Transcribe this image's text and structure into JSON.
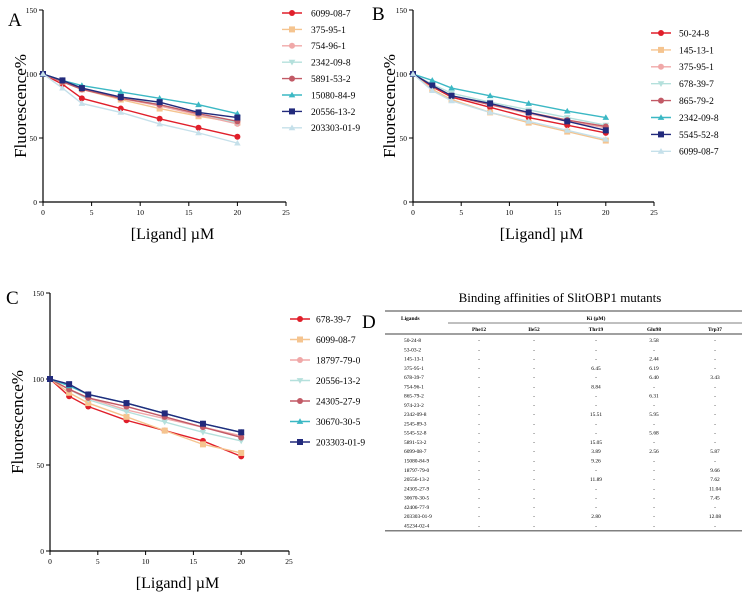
{
  "series_colors": [
    "#e01f2a",
    "#f5c48f",
    "#f0a8a8",
    "#b4e0dc",
    "#c25a66",
    "#3bb8c4",
    "#222a7c",
    "#c5e0ea"
  ],
  "chart_data": [
    {
      "panel": "A",
      "type": "line",
      "xlabel": "[Ligand] µM",
      "ylabel": "Fluorescence%",
      "xlim": [
        0,
        25
      ],
      "ylim": [
        0,
        150
      ],
      "xticks": [
        0,
        5,
        10,
        15,
        20,
        25
      ],
      "yticks": [
        0,
        50,
        100,
        150
      ],
      "x": [
        0,
        2,
        4,
        8,
        12,
        16,
        20
      ],
      "series": [
        {
          "name": "6099-08-7",
          "color": "#e01f2a",
          "marker": "circle",
          "values": [
            100,
            92,
            81,
            73,
            65,
            58,
            51
          ]
        },
        {
          "name": "375-95-1",
          "color": "#f5c48f",
          "marker": "square",
          "values": [
            100,
            94,
            88,
            80,
            73,
            67,
            62
          ]
        },
        {
          "name": "754-96-1",
          "color": "#f0a8a8",
          "marker": "circle",
          "values": [
            100,
            94,
            88,
            81,
            75,
            68,
            61
          ]
        },
        {
          "name": "2342-09-8",
          "color": "#b4e0dc",
          "marker": "tri-down",
          "values": [
            100,
            94,
            88,
            82,
            76,
            69,
            62
          ]
        },
        {
          "name": "5891-53-2",
          "color": "#c25a66",
          "marker": "circle",
          "values": [
            100,
            94,
            88,
            81,
            76,
            69,
            63
          ]
        },
        {
          "name": "15080-84-9",
          "color": "#3bb8c4",
          "marker": "tri-up",
          "values": [
            100,
            95,
            91,
            86,
            81,
            76,
            69
          ]
        },
        {
          "name": "20556-13-2",
          "color": "#222a7c",
          "marker": "square",
          "values": [
            100,
            95,
            89,
            82,
            78,
            70,
            66
          ]
        },
        {
          "name": "203303-01-9",
          "color": "#c5e0ea",
          "marker": "tri-up",
          "values": [
            100,
            89,
            77,
            70,
            61,
            54,
            46
          ]
        }
      ]
    },
    {
      "panel": "B",
      "type": "line",
      "xlabel": "[Ligand] µM",
      "ylabel": "Fluorescence%",
      "xlim": [
        0,
        25
      ],
      "ylim": [
        0,
        150
      ],
      "xticks": [
        0,
        5,
        10,
        15,
        20,
        25
      ],
      "yticks": [
        0,
        50,
        100,
        150
      ],
      "x": [
        0,
        2,
        4,
        8,
        12,
        16,
        20
      ],
      "series": [
        {
          "name": "50-24-8",
          "color": "#e01f2a",
          "marker": "circle",
          "values": [
            100,
            90,
            82,
            74,
            66,
            60,
            54
          ]
        },
        {
          "name": "145-13-1",
          "color": "#f5c48f",
          "marker": "square",
          "values": [
            100,
            88,
            80,
            70,
            62,
            55,
            48
          ]
        },
        {
          "name": "375-95-1",
          "color": "#f0a8a8",
          "marker": "circle",
          "values": [
            100,
            91,
            83,
            76,
            69,
            63,
            58
          ]
        },
        {
          "name": "678-39-7",
          "color": "#b4e0dc",
          "marker": "tri-down",
          "values": [
            100,
            92,
            85,
            78,
            72,
            66,
            60
          ]
        },
        {
          "name": "865-79-2",
          "color": "#c25a66",
          "marker": "circle",
          "values": [
            100,
            91,
            83,
            76,
            70,
            64,
            59
          ]
        },
        {
          "name": "2342-09-8",
          "color": "#3bb8c4",
          "marker": "tri-up",
          "values": [
            100,
            95,
            89,
            83,
            77,
            71,
            66
          ]
        },
        {
          "name": "5545-52-8",
          "color": "#222a7c",
          "marker": "square",
          "values": [
            100,
            91,
            83,
            77,
            70,
            63,
            56
          ]
        },
        {
          "name": "6099-08-7",
          "color": "#c5e0ea",
          "marker": "tri-up",
          "values": [
            100,
            87,
            79,
            70,
            63,
            56,
            49
          ]
        }
      ]
    },
    {
      "panel": "C",
      "type": "line",
      "xlabel": "[Ligand] µM",
      "ylabel": "Fluorescence%",
      "xlim": [
        0,
        25
      ],
      "ylim": [
        0,
        150
      ],
      "xticks": [
        0,
        5,
        10,
        15,
        20,
        25
      ],
      "yticks": [
        0,
        50,
        100,
        150
      ],
      "x": [
        0,
        2,
        4,
        8,
        12,
        16,
        20
      ],
      "series": [
        {
          "name": "678-39-7",
          "color": "#e01f2a",
          "marker": "circle",
          "values": [
            100,
            90,
            84,
            76,
            70,
            64,
            55
          ]
        },
        {
          "name": "6099-08-7",
          "color": "#f5c48f",
          "marker": "square",
          "values": [
            100,
            92,
            86,
            78,
            70,
            62,
            57
          ]
        },
        {
          "name": "18797-79-0",
          "color": "#f0a8a8",
          "marker": "circle",
          "values": [
            100,
            94,
            89,
            82,
            77,
            72,
            67
          ]
        },
        {
          "name": "20556-13-2",
          "color": "#b4e0dc",
          "marker": "tri-down",
          "values": [
            100,
            94,
            88,
            81,
            75,
            69,
            64
          ]
        },
        {
          "name": "24305-27-9",
          "color": "#c25a66",
          "marker": "circle",
          "values": [
            100,
            94,
            89,
            84,
            78,
            72,
            66
          ]
        },
        {
          "name": "30670-30-5",
          "color": "#3bb8c4",
          "marker": "tri-up",
          "values": [
            100,
            96,
            91,
            86,
            80,
            74,
            69
          ]
        },
        {
          "name": "203303-01-9",
          "color": "#222a7c",
          "marker": "square",
          "values": [
            100,
            97,
            91,
            86,
            80,
            74,
            69
          ]
        }
      ]
    },
    {
      "panel": "D",
      "type": "table",
      "title": "Binding affinities of SlitOBP1 mutants",
      "corner_header": "Ligands",
      "group_header": "Ki (µM)",
      "columns": [
        "Phe12",
        "Ile52",
        "Thr19",
        "Glu98",
        "Trp37"
      ],
      "rows": [
        {
          "ligand": "50-24-8",
          "values": [
            "-",
            "-",
            "-",
            "3.58",
            "-"
          ]
        },
        {
          "ligand": "53-03-2",
          "values": [
            "-",
            "-",
            "-",
            "-",
            "-"
          ]
        },
        {
          "ligand": "145-13-1",
          "values": [
            "-",
            "-",
            "-",
            "2.44",
            "-"
          ]
        },
        {
          "ligand": "375-95-1",
          "values": [
            "-",
            "-",
            "6.45",
            "6.19",
            "-"
          ]
        },
        {
          "ligand": "678-39-7",
          "values": [
            "-",
            "-",
            "-",
            "6.40",
            "3.43"
          ]
        },
        {
          "ligand": "754-96-1",
          "values": [
            "-",
            "-",
            "8.84",
            "-",
            "-"
          ]
        },
        {
          "ligand": "865-79-2",
          "values": [
            "-",
            "-",
            "-",
            "6.31",
            "-"
          ]
        },
        {
          "ligand": "974-23-2",
          "values": [
            "-",
            "-",
            "-",
            "-",
            "-"
          ]
        },
        {
          "ligand": "2342-09-8",
          "values": [
            "-",
            "-",
            "15.51",
            "5.95",
            "-"
          ]
        },
        {
          "ligand": "2545-89-3",
          "values": [
            "-",
            "-",
            "-",
            "-",
            "-"
          ]
        },
        {
          "ligand": "5545-52-8",
          "values": [
            "-",
            "-",
            "-",
            "5.68",
            "-"
          ]
        },
        {
          "ligand": "5891-53-2",
          "values": [
            "-",
            "-",
            "15.05",
            "-",
            "-"
          ]
        },
        {
          "ligand": "6099-08-7",
          "values": [
            "-",
            "-",
            "3.89",
            "2.56",
            "5.87"
          ]
        },
        {
          "ligand": "15080-84-9",
          "values": [
            "-",
            "-",
            "9.26",
            "-",
            "-"
          ]
        },
        {
          "ligand": "18797-79-0",
          "values": [
            "-",
            "-",
            "-",
            "-",
            "9.66"
          ]
        },
        {
          "ligand": "20556-13-2",
          "values": [
            "-",
            "-",
            "11.89",
            "-",
            "7.62"
          ]
        },
        {
          "ligand": "24305-27-9",
          "values": [
            "-",
            "-",
            "-",
            "-",
            "11.04"
          ]
        },
        {
          "ligand": "30670-30-5",
          "values": [
            "-",
            "-",
            "-",
            "-",
            "7.45"
          ]
        },
        {
          "ligand": "42406-77-9",
          "values": [
            "-",
            "-",
            "-",
            "-",
            "-"
          ]
        },
        {
          "ligand": "203303-01-9",
          "values": [
            "-",
            "-",
            "2.80",
            "-",
            "12.08"
          ]
        },
        {
          "ligand": "45234-02-4",
          "values": [
            "-",
            "-",
            "-",
            "-",
            "-"
          ]
        }
      ]
    }
  ]
}
